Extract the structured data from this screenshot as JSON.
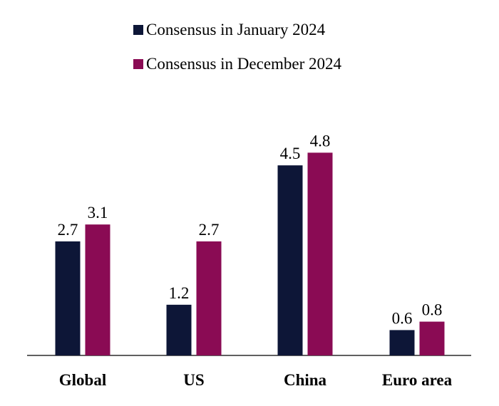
{
  "chart_data": {
    "type": "bar",
    "categories": [
      "Global",
      "US",
      "China",
      "Euro area"
    ],
    "series": [
      {
        "name": "Consensus in January 2024",
        "color": "#0d1637",
        "values": [
          2.7,
          1.2,
          4.5,
          0.6
        ],
        "labels": [
          "2.7",
          "1.2",
          "4.5",
          "0.6"
        ]
      },
      {
        "name": "Consensus in December 2024",
        "color": "#8a0b54",
        "values": [
          3.1,
          2.7,
          4.8,
          0.8
        ],
        "labels": [
          "3.1",
          "2.7",
          "4.8",
          "0.8"
        ]
      }
    ],
    "ylim": [
      0,
      5.5
    ],
    "legend_position": "top",
    "grid": false
  }
}
